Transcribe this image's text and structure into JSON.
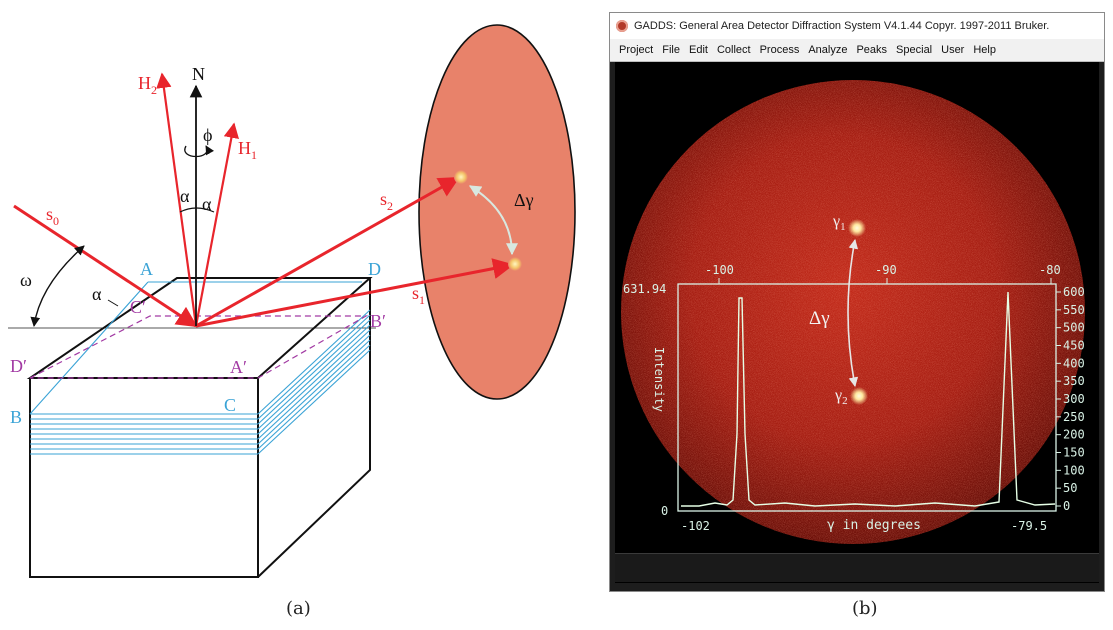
{
  "panel_a": {
    "labels": {
      "N": "N",
      "H1": "H",
      "H1_sub": "1",
      "H2": "H",
      "H2_sub": "2",
      "phi": "ϕ",
      "alpha1": "α",
      "alpha2": "α",
      "alpha3": "α",
      "s0": "s",
      "s0_sub": "0",
      "s1": "s",
      "s1_sub": "1",
      "s2": "s",
      "s2_sub": "2",
      "omega": "ω",
      "delta_gamma": "Δγ",
      "A": "A",
      "B": "B",
      "C": "C",
      "D": "D",
      "A_prime": "A′",
      "B_prime": "B′",
      "C_prime": "C′",
      "D_prime": "D′"
    },
    "colors": {
      "beam": "#e8252c",
      "plane_blue": "#3aa3d6",
      "plane_purple": "#a23aa3",
      "detector": "#e8826a",
      "outline": "#111111"
    },
    "caption": "(a)"
  },
  "window": {
    "title": "GADDS: General Area Detector Diffraction System V4.1.44  Copyr. 1997-2011 Bruker.",
    "menu": [
      "Project",
      "File",
      "Edit",
      "Collect",
      "Process",
      "Analyze",
      "Peaks",
      "Special",
      "User",
      "Help"
    ],
    "frame": {
      "top_ticks": [
        "-100",
        "-90",
        "-80"
      ],
      "right_ticks": [
        "600",
        "550",
        "500",
        "450",
        "400",
        "350",
        "300",
        "250",
        "200",
        "150",
        "100",
        "50",
        "0"
      ],
      "y_max_label": "631.94",
      "y_min_label": "0",
      "x_left_label": "-102",
      "x_right_label": "-79.5",
      "x_axis_label": "γ in degrees",
      "y_axis_label": "Intensity",
      "spot_1": "γ",
      "spot_1_sub": "1",
      "spot_2": "γ",
      "spot_2_sub": "2",
      "delta_gamma": "Δγ"
    },
    "colors": {
      "trace": "#e6ffe6",
      "frame": "#d9f2e6",
      "spot": "#ffe9a0"
    }
  },
  "caption_b": "(b)"
}
